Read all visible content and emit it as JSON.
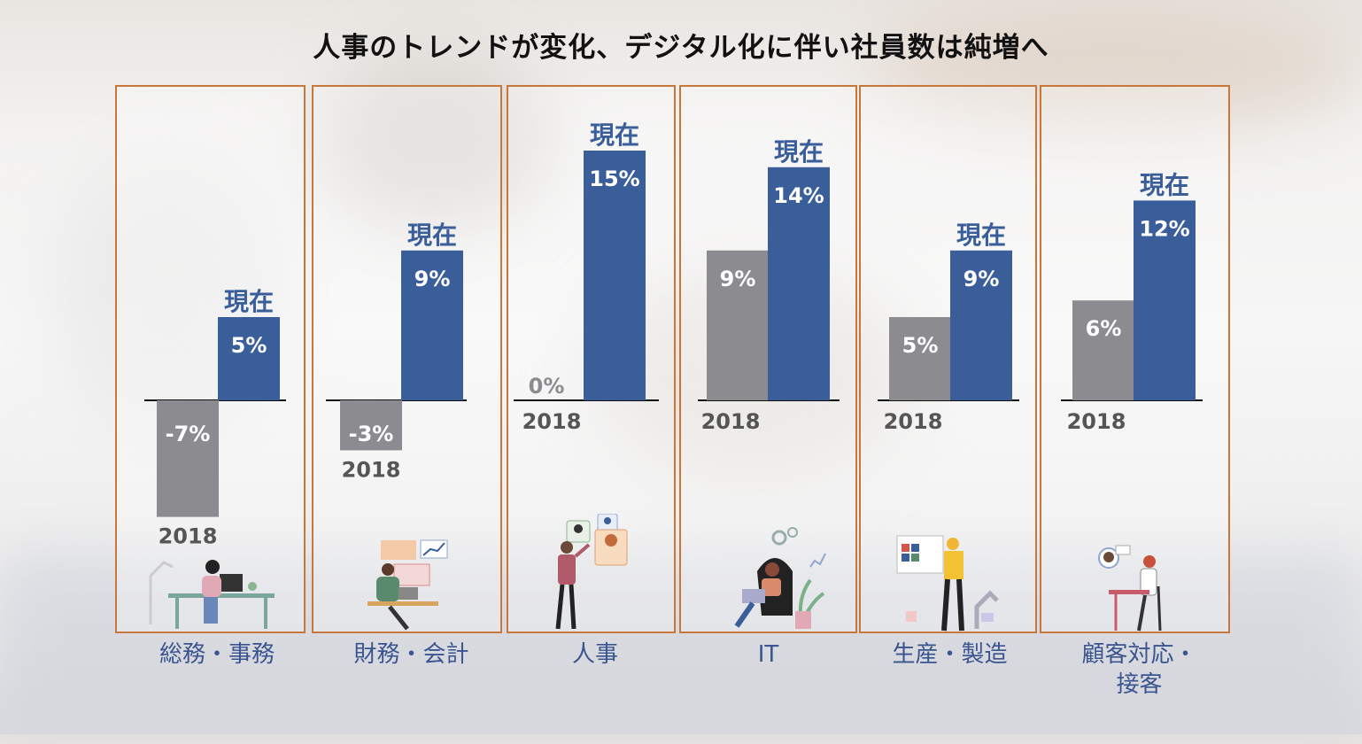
{
  "title": "人事のトレンドが変化、デジタル化に伴い社員数は純増へ",
  "colors": {
    "current": "#3a5e99",
    "baseline_2018": "#8c8c90",
    "frame": "#c8773a",
    "category_text": "#3a5490"
  },
  "labels": {
    "current": "現在",
    "baseline": "2018"
  },
  "chart_data": {
    "type": "bar",
    "categories": [
      "総務・事務",
      "財務・会計",
      "人事",
      "IT",
      "生産・製造",
      "顧客対応・接客"
    ],
    "series": [
      {
        "name": "2018",
        "values": [
          -7,
          -3,
          0,
          9,
          5,
          6
        ]
      },
      {
        "name": "現在",
        "values": [
          5,
          9,
          15,
          14,
          9,
          12
        ]
      }
    ],
    "value_labels": {
      "2018": [
        "-7%",
        "-3%",
        "0%",
        "9%",
        "5%",
        "6%"
      ],
      "現在": [
        "5%",
        "9%",
        "15%",
        "14%",
        "9%",
        "12%"
      ]
    },
    "unit": "%"
  },
  "panels": [
    {
      "category": "総務・事務",
      "category_lines": [
        "総務・事務"
      ],
      "icon": "office-worker-at-desk-icon"
    },
    {
      "category": "財務・会計",
      "category_lines": [
        "財務・会計"
      ],
      "icon": "accountant-with-charts-icon"
    },
    {
      "category": "人事",
      "category_lines": [
        "人事"
      ],
      "icon": "hr-recruiter-profiles-icon"
    },
    {
      "category": "IT",
      "category_lines": [
        "IT"
      ],
      "icon": "it-worker-laptop-gears-icon"
    },
    {
      "category": "生産・製造",
      "category_lines": [
        "生産・製造"
      ],
      "icon": "factory-worker-robot-arm-icon"
    },
    {
      "category": "顧客対応・接客",
      "category_lines": [
        "顧客対応・",
        "接客"
      ],
      "icon": "customer-support-headset-icon"
    }
  ]
}
